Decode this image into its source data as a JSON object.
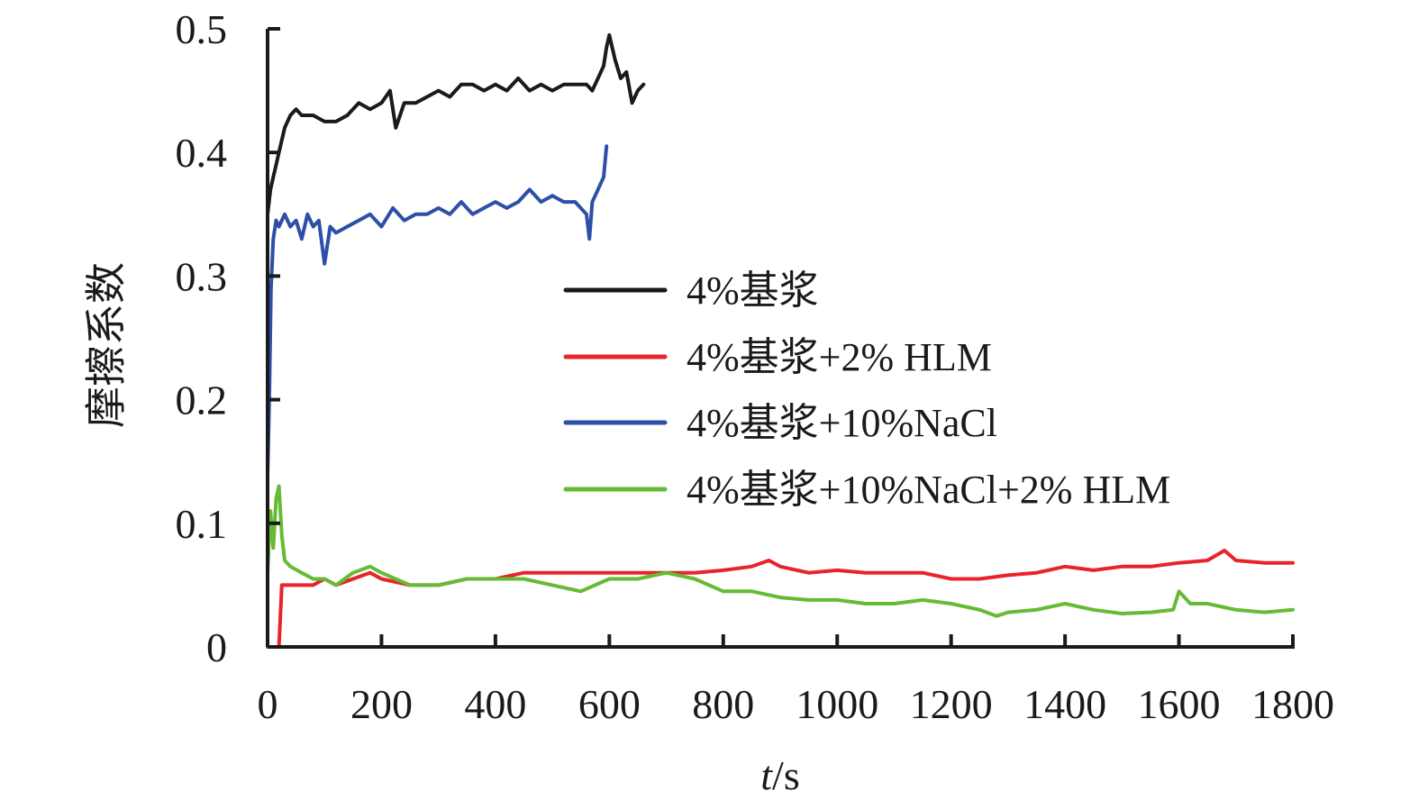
{
  "chart_data": {
    "type": "line",
    "title": "",
    "xlabel_italic": "t",
    "xlabel_rest": "/s",
    "ylabel": "摩擦系数",
    "xlim": [
      0,
      1800
    ],
    "ylim": [
      0,
      0.5
    ],
    "x_ticks": [
      0,
      200,
      400,
      600,
      800,
      1000,
      1200,
      1400,
      1600,
      1800
    ],
    "x_tick_labels": [
      "0",
      "200",
      "400",
      "600",
      "800",
      "1000",
      "1200",
      "1400",
      "1600",
      "1800"
    ],
    "y_ticks": [
      0,
      0.1,
      0.2,
      0.3,
      0.4,
      0.5
    ],
    "y_tick_labels": [
      "0",
      "0.1",
      "0.2",
      "0.3",
      "0.4",
      "0.5"
    ],
    "grid": false,
    "legend_position": "center-right",
    "series": [
      {
        "name": "4%基浆",
        "color": "#1a1a1a",
        "x": [
          0,
          5,
          10,
          15,
          20,
          30,
          40,
          50,
          60,
          80,
          100,
          120,
          140,
          160,
          180,
          200,
          215,
          225,
          240,
          260,
          280,
          300,
          320,
          340,
          360,
          380,
          400,
          420,
          440,
          460,
          480,
          500,
          520,
          540,
          560,
          570,
          580,
          590,
          595,
          600,
          610,
          620,
          630,
          640,
          650,
          660
        ],
        "y": [
          0.35,
          0.37,
          0.38,
          0.39,
          0.4,
          0.42,
          0.43,
          0.435,
          0.43,
          0.43,
          0.425,
          0.425,
          0.43,
          0.44,
          0.435,
          0.44,
          0.45,
          0.42,
          0.44,
          0.44,
          0.445,
          0.45,
          0.445,
          0.455,
          0.455,
          0.45,
          0.455,
          0.45,
          0.46,
          0.45,
          0.455,
          0.45,
          0.455,
          0.455,
          0.455,
          0.45,
          0.46,
          0.47,
          0.485,
          0.495,
          0.475,
          0.46,
          0.465,
          0.44,
          0.45,
          0.455
        ]
      },
      {
        "name": "4%基浆+2% HLM",
        "color": "#e8242a",
        "x": [
          0,
          10,
          20,
          25,
          30,
          40,
          60,
          80,
          100,
          120,
          150,
          180,
          200,
          250,
          300,
          350,
          400,
          450,
          500,
          550,
          600,
          650,
          700,
          750,
          800,
          850,
          880,
          900,
          950,
          1000,
          1050,
          1100,
          1150,
          1200,
          1250,
          1300,
          1350,
          1400,
          1450,
          1500,
          1550,
          1600,
          1650,
          1680,
          1700,
          1750,
          1800
        ],
        "y": [
          0,
          0,
          0,
          0.05,
          0.05,
          0.05,
          0.05,
          0.05,
          0.055,
          0.05,
          0.055,
          0.06,
          0.055,
          0.05,
          0.05,
          0.055,
          0.055,
          0.06,
          0.06,
          0.06,
          0.06,
          0.06,
          0.06,
          0.06,
          0.062,
          0.065,
          0.07,
          0.065,
          0.06,
          0.062,
          0.06,
          0.06,
          0.06,
          0.055,
          0.055,
          0.058,
          0.06,
          0.065,
          0.062,
          0.065,
          0.065,
          0.068,
          0.07,
          0.078,
          0.07,
          0.068,
          0.068
        ]
      },
      {
        "name": "4%基浆+10%NaCl",
        "color": "#2e4fa8",
        "x": [
          0,
          3,
          6,
          10,
          15,
          20,
          30,
          40,
          50,
          60,
          70,
          80,
          90,
          100,
          110,
          120,
          140,
          160,
          180,
          200,
          220,
          240,
          260,
          280,
          300,
          320,
          340,
          360,
          380,
          400,
          420,
          440,
          460,
          480,
          500,
          520,
          540,
          560,
          565,
          570,
          580,
          590,
          595
        ],
        "y": [
          0.14,
          0.2,
          0.29,
          0.33,
          0.345,
          0.34,
          0.35,
          0.34,
          0.345,
          0.33,
          0.35,
          0.34,
          0.345,
          0.31,
          0.34,
          0.335,
          0.34,
          0.345,
          0.35,
          0.34,
          0.355,
          0.345,
          0.35,
          0.35,
          0.355,
          0.35,
          0.36,
          0.35,
          0.355,
          0.36,
          0.355,
          0.36,
          0.37,
          0.36,
          0.365,
          0.36,
          0.36,
          0.35,
          0.33,
          0.36,
          0.37,
          0.38,
          0.405
        ]
      },
      {
        "name": "4%基浆+10%NaCl+2% HLM",
        "color": "#66bb35",
        "x": [
          0,
          5,
          10,
          15,
          20,
          25,
          30,
          40,
          60,
          80,
          100,
          120,
          150,
          180,
          200,
          250,
          300,
          350,
          400,
          450,
          500,
          550,
          600,
          650,
          700,
          750,
          800,
          850,
          900,
          950,
          1000,
          1050,
          1100,
          1150,
          1200,
          1250,
          1280,
          1300,
          1350,
          1400,
          1450,
          1500,
          1550,
          1590,
          1600,
          1620,
          1650,
          1700,
          1750,
          1800
        ],
        "y": [
          0.06,
          0.11,
          0.08,
          0.12,
          0.13,
          0.09,
          0.07,
          0.065,
          0.06,
          0.055,
          0.055,
          0.05,
          0.06,
          0.065,
          0.06,
          0.05,
          0.05,
          0.055,
          0.055,
          0.055,
          0.05,
          0.045,
          0.055,
          0.055,
          0.06,
          0.055,
          0.045,
          0.045,
          0.04,
          0.038,
          0.038,
          0.035,
          0.035,
          0.038,
          0.035,
          0.03,
          0.025,
          0.028,
          0.03,
          0.035,
          0.03,
          0.027,
          0.028,
          0.03,
          0.045,
          0.035,
          0.035,
          0.03,
          0.028,
          0.03
        ]
      }
    ]
  }
}
